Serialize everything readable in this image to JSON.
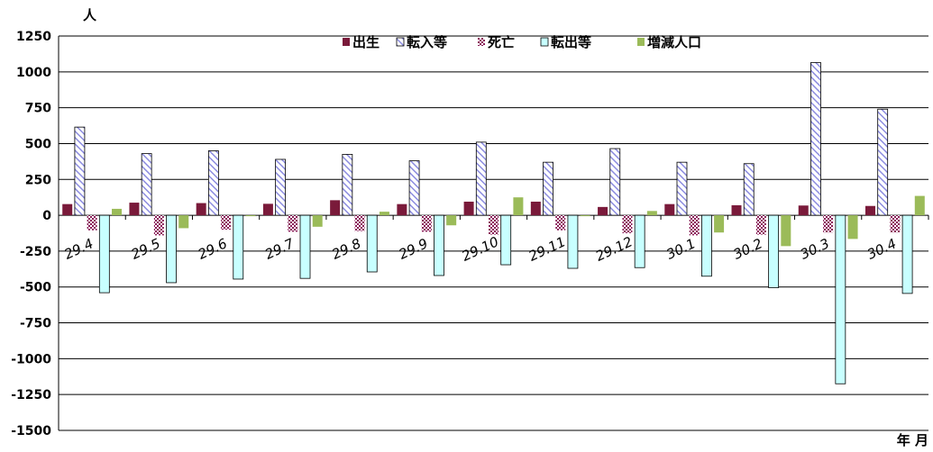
{
  "chart_data": {
    "type": "bar",
    "ylabel": "人",
    "xlabel": "年 月",
    "ylim": [
      -1500,
      1250
    ],
    "yticks": [
      1250,
      1000,
      750,
      500,
      250,
      0,
      -250,
      -500,
      -750,
      -1000,
      -1250,
      -1500
    ],
    "grid": true,
    "legend_position": "top",
    "categories": [
      "29.4",
      "29.5",
      "29.6",
      "29.7",
      "29.8",
      "29.9",
      "29.10",
      "29.11",
      "29.12",
      "30.1",
      "30.2",
      "30.3",
      "30.4"
    ],
    "series": [
      {
        "name": "出生",
        "color": "#7a1a3a",
        "pattern": "solid",
        "values": [
          78,
          88,
          85,
          80,
          105,
          78,
          95,
          95,
          58,
          78,
          70,
          68,
          65
        ]
      },
      {
        "name": "転入等",
        "color": "#8c8ce0",
        "pattern": "diagonal",
        "values": [
          615,
          430,
          450,
          390,
          425,
          380,
          510,
          370,
          465,
          370,
          360,
          1065,
          740
        ]
      },
      {
        "name": "死亡",
        "color": "#8b1f5a",
        "pattern": "checker",
        "values": [
          -105,
          -140,
          -100,
          -115,
          -110,
          -115,
          -135,
          -105,
          -125,
          -140,
          -135,
          -120,
          -120
        ]
      },
      {
        "name": "転出等",
        "color": "#c8ffff",
        "pattern": "solid-outline",
        "values": [
          -540,
          -470,
          -445,
          -440,
          -395,
          -420,
          -345,
          -370,
          -365,
          -425,
          -505,
          -1175,
          -545
        ]
      },
      {
        "name": "増減人口",
        "color": "#9bbb59",
        "pattern": "solid",
        "values": [
          45,
          -90,
          -5,
          -80,
          25,
          -70,
          125,
          -5,
          30,
          -120,
          -215,
          -165,
          135
        ]
      }
    ]
  }
}
